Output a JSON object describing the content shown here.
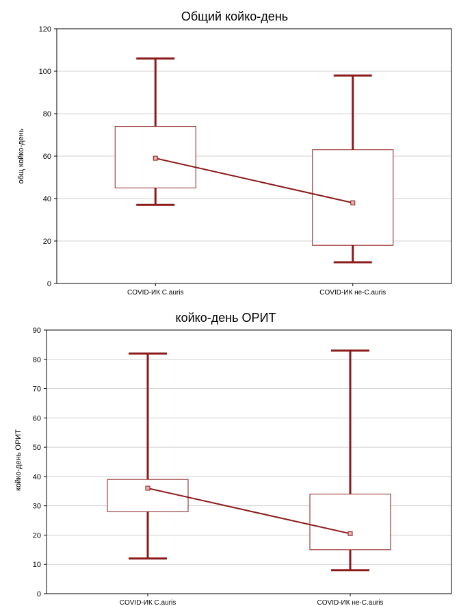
{
  "colors": {
    "series": "#8b1a1a",
    "grid": "#d0d0d0",
    "axis": "#000000"
  },
  "chart_data": [
    {
      "type": "box",
      "title": "Общий койко-день",
      "xlabel": "",
      "ylabel": "общ койко-день",
      "ylim": [
        0,
        120
      ],
      "yticks": [
        0,
        20,
        40,
        60,
        80,
        100,
        120
      ],
      "yticks_labels": [
        "0",
        "20",
        "40",
        "60",
        "80",
        "100",
        "120"
      ],
      "grid": true,
      "categories": [
        "COVID-ИК C.auris",
        "COVID-ИК не-C.auris"
      ],
      "boxes": [
        {
          "whisker_low": 37,
          "q1": 45,
          "center": 59,
          "q3": 74,
          "whisker_high": 106
        },
        {
          "whisker_low": 10,
          "q1": 18,
          "center": 38,
          "q3": 63,
          "whisker_high": 98
        }
      ],
      "connect_centers": true
    },
    {
      "type": "box",
      "title": "койко-день ОРИТ",
      "xlabel": "",
      "ylabel": "койко-день ОРИТ",
      "ylim": [
        0,
        90
      ],
      "yticks": [
        0,
        10,
        20,
        30,
        40,
        50,
        60,
        70,
        80,
        90
      ],
      "yticks_labels": [
        "0",
        "10",
        "20",
        "30",
        "40",
        "50",
        "60",
        "70",
        "80",
        "90"
      ],
      "grid": true,
      "categories": [
        "COVID-ИК C.auris",
        "COVID-ИК не-C.auris"
      ],
      "boxes": [
        {
          "whisker_low": 12,
          "q1": 28,
          "center": 36,
          "q3": 39,
          "whisker_high": 82
        },
        {
          "whisker_low": 8,
          "q1": 15,
          "center": 20.5,
          "q3": 34,
          "whisker_high": 83
        }
      ],
      "connect_centers": true
    }
  ]
}
